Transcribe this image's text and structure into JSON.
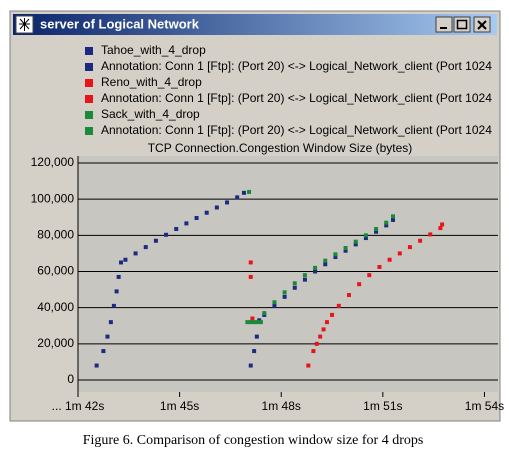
{
  "window": {
    "title": "server of Logical Network"
  },
  "caption": "Figure 6.    Comparison of congestion window size for 4 drops",
  "chart_data": {
    "type": "scatter",
    "title": "TCP Connection.Congestion Window Size (bytes)",
    "xlim": [
      102,
      114.4
    ],
    "ylim": [
      0,
      120000
    ],
    "xticks": [
      {
        "value": 102,
        "label": "... 1m 42s"
      },
      {
        "value": 105,
        "label": "1m 45s"
      },
      {
        "value": 108,
        "label": "1m 48s"
      },
      {
        "value": 111,
        "label": "1m 51s"
      },
      {
        "value": 114,
        "label": "1m 54s"
      }
    ],
    "yticks": [
      0,
      {
        "value": 20000,
        "label": "20,000"
      },
      {
        "value": 40000,
        "label": "40,000"
      },
      {
        "value": 60000,
        "label": "60,000"
      },
      {
        "value": 80000,
        "label": "80,000"
      },
      {
        "value": 100000,
        "label": "100,000"
      },
      {
        "value": 120000,
        "label": "120,000"
      }
    ],
    "grid": true,
    "series": [
      {
        "name": "Tahoe_with_4_drop",
        "color": "#1c2a80",
        "x": [
          102.55,
          102.75,
          102.87,
          102.97,
          103.06,
          103.14,
          103.2,
          103.27,
          103.4,
          103.7,
          104.0,
          104.3,
          104.6,
          104.9,
          105.2,
          105.5,
          105.8,
          106.1,
          106.4,
          106.7,
          106.9,
          107.1,
          107.2,
          107.28,
          107.35,
          107.5,
          107.8,
          108.1,
          108.4,
          108.7,
          109.0,
          109.3,
          109.6,
          109.9,
          110.2,
          110.5,
          110.8,
          111.1,
          111.3
        ],
        "y": [
          8000,
          16000,
          24000,
          32000,
          41000,
          49000,
          57000,
          65000,
          66500,
          70000,
          73500,
          77000,
          80300,
          83500,
          86600,
          89600,
          92500,
          95400,
          98200,
          101000,
          103500,
          8000,
          16000,
          24000,
          33000,
          36000,
          41000,
          46000,
          51000,
          55500,
          60000,
          64000,
          68000,
          71500,
          75000,
          78500,
          82000,
          85500,
          88500
        ]
      },
      {
        "name": "Annotation: Conn 1 [Ftp]: (Port 20) <-> Logical_Network_client (Port 1024",
        "color": "#1c2a80",
        "x": [],
        "y": []
      },
      {
        "name": "Reno_with_4_drop",
        "color": "#e8141a",
        "x": [
          107.1,
          107.1,
          107.15,
          108.8,
          108.95,
          109.05,
          109.15,
          109.25,
          109.35,
          109.5,
          109.7,
          110.0,
          110.3,
          110.6,
          110.9,
          111.2,
          111.5,
          111.8,
          112.1,
          112.4,
          112.7,
          112.75
        ],
        "y": [
          65000,
          57000,
          34000,
          8000,
          16000,
          20000,
          24000,
          28000,
          32000,
          36000,
          41000,
          47000,
          53000,
          58000,
          62500,
          66500,
          70000,
          73500,
          77000,
          80500,
          84000,
          86000
        ]
      },
      {
        "name": "Annotation: Conn 1 [Ftp]: (Port 20) <-> Logical_Network_client (Port 1024",
        "color": "#e8141a",
        "x": [],
        "y": []
      },
      {
        "name": "Sack_with_4_drop",
        "color": "#1a8a3a",
        "x": [
          107.05,
          107.0,
          107.1,
          107.2,
          107.3,
          107.4,
          107.5,
          107.8,
          108.1,
          108.4,
          108.7,
          109.0,
          109.3,
          109.6,
          109.9,
          110.2,
          110.5,
          110.8,
          111.1,
          111.3
        ],
        "y": [
          104000,
          32000,
          32000,
          32000,
          32000,
          32000,
          37000,
          43000,
          48500,
          53500,
          58000,
          62000,
          66000,
          69500,
          73000,
          76500,
          80000,
          83500,
          87000,
          90500
        ]
      },
      {
        "name": "Annotation: Conn 1 [Ftp]: (Port 20) <-> Logical_Network_client (Port 1024",
        "color": "#1a8a3a",
        "x": [],
        "y": []
      }
    ]
  }
}
